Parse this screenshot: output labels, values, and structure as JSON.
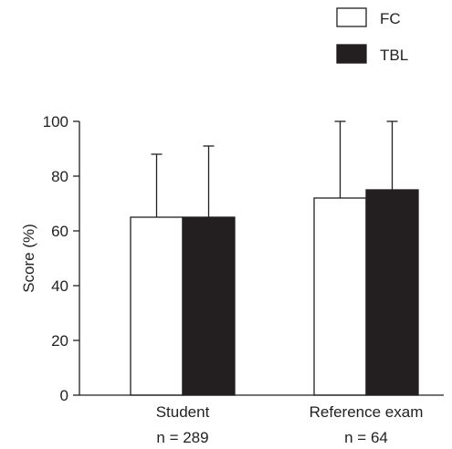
{
  "chart_data": {
    "type": "bar",
    "categories": [
      "Student",
      "Reference exam"
    ],
    "category_sublabels": [
      "n = 289",
      "n = 64"
    ],
    "series": [
      {
        "name": "FC",
        "values": [
          65,
          72
        ],
        "errors_upper": [
          88,
          100
        ],
        "color": "#ffffff"
      },
      {
        "name": "TBL",
        "values": [
          65,
          75
        ],
        "errors_upper": [
          91,
          100
        ],
        "color": "#231f20"
      }
    ],
    "ylabel": "Score (%)",
    "ylim": [
      0,
      100
    ],
    "yticks": [
      0,
      20,
      40,
      60,
      80,
      100
    ],
    "grid": false,
    "legend_position": "top-right"
  }
}
